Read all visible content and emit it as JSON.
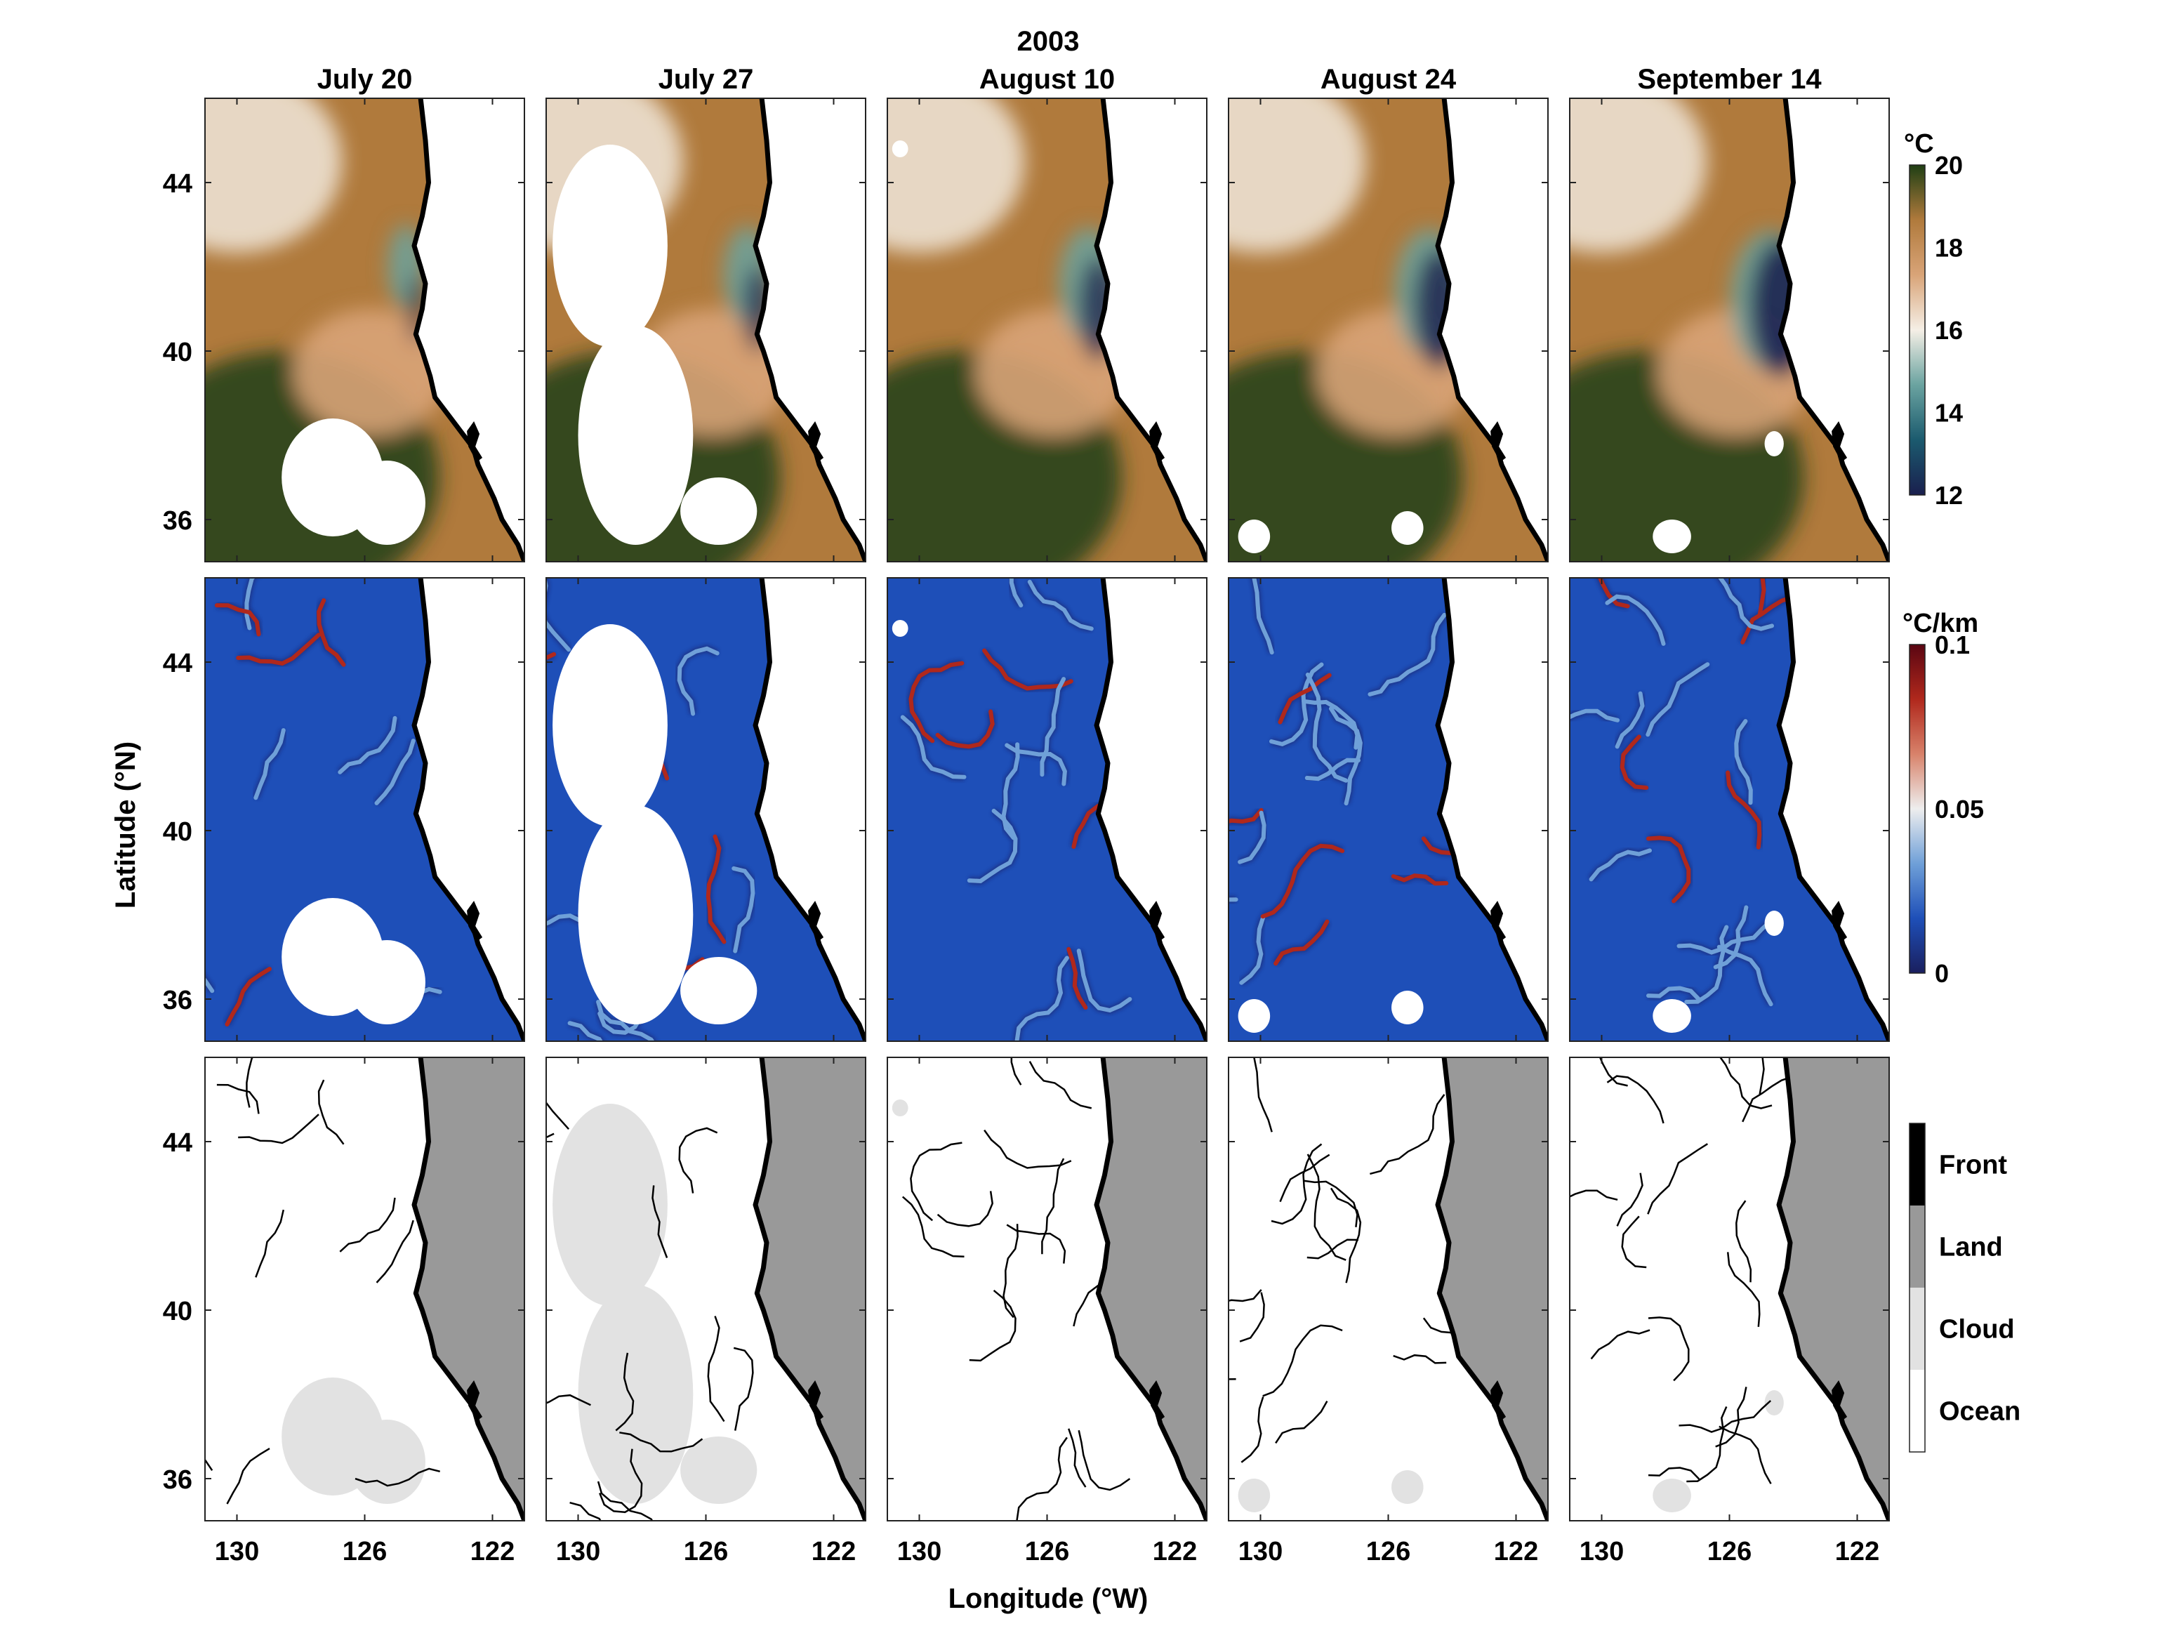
{
  "figure": {
    "year": "2003",
    "dates": [
      "July 20",
      "July 27",
      "August 10",
      "August 24",
      "September 14"
    ],
    "xlabel": "Longitude (°W)",
    "ylabel": "Latitude (°N)"
  },
  "chart_data": [
    {
      "type": "heatmap",
      "row": "sst",
      "variable_unit": "°C",
      "colormap": [
        "#1a1f4e",
        "#1b5a6e",
        "#6aa3a0",
        "#f5efe6",
        "#d9a478",
        "#b07a3c",
        "#1f3f14"
      ],
      "clim": [
        12,
        20
      ],
      "colorbar_ticks": [
        12,
        14,
        16,
        18,
        20
      ],
      "x_ticks": [
        130,
        126,
        122
      ],
      "y_ticks": [
        36,
        40,
        44
      ],
      "xlim": [
        131,
        121
      ],
      "ylim": [
        35,
        46
      ],
      "panels": [
        "July 20",
        "July 27",
        "August 10",
        "August 24",
        "September 14"
      ]
    },
    {
      "type": "heatmap",
      "row": "gradient",
      "variable_unit": "°C/km",
      "colormap": [
        "#1a1f5e",
        "#1e4fb8",
        "#6fa0d8",
        "#eeeeee",
        "#d8826a",
        "#b0281c",
        "#5a0612"
      ],
      "clim": [
        0,
        0.1
      ],
      "colorbar_ticks": [
        0,
        0.05,
        0.1
      ],
      "x_ticks": [
        130,
        126,
        122
      ],
      "y_ticks": [
        36,
        40,
        44
      ],
      "xlim": [
        131,
        121
      ],
      "ylim": [
        35,
        46
      ],
      "panels": [
        "July 20",
        "July 27",
        "August 10",
        "August 24",
        "September 14"
      ]
    },
    {
      "type": "heatmap",
      "row": "classification",
      "categories": [
        "Front",
        "Land",
        "Cloud",
        "Ocean"
      ],
      "category_colors": [
        "#000000",
        "#999999",
        "#e2e2e2",
        "#ffffff"
      ],
      "x_ticks": [
        130,
        126,
        122
      ],
      "y_ticks": [
        36,
        40,
        44
      ],
      "xlim": [
        131,
        121
      ],
      "ylim": [
        35,
        46
      ],
      "panels": [
        "July 20",
        "July 27",
        "August 10",
        "August 24",
        "September 14"
      ]
    }
  ]
}
